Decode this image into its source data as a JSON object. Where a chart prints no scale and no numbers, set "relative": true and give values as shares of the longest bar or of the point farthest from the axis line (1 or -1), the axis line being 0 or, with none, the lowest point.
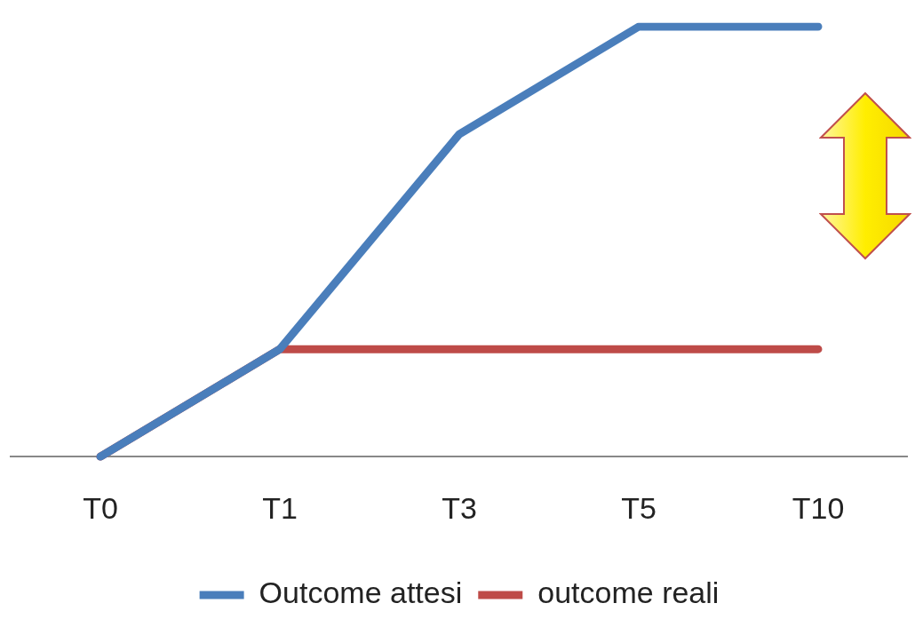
{
  "chart_data": {
    "type": "line",
    "relative": true,
    "categories": [
      "T0",
      "T1",
      "T3",
      "T5",
      "T10"
    ],
    "series": [
      {
        "name": "Outcome attesi",
        "color": "#4a7ebb",
        "values": [
          0,
          0.25,
          0.75,
          1,
          1
        ]
      },
      {
        "name": "outcome reali",
        "color": "#be4b48",
        "values": [
          0,
          0.25,
          0.25,
          0.25,
          0.25
        ]
      }
    ],
    "legend": "bottom"
  }
}
